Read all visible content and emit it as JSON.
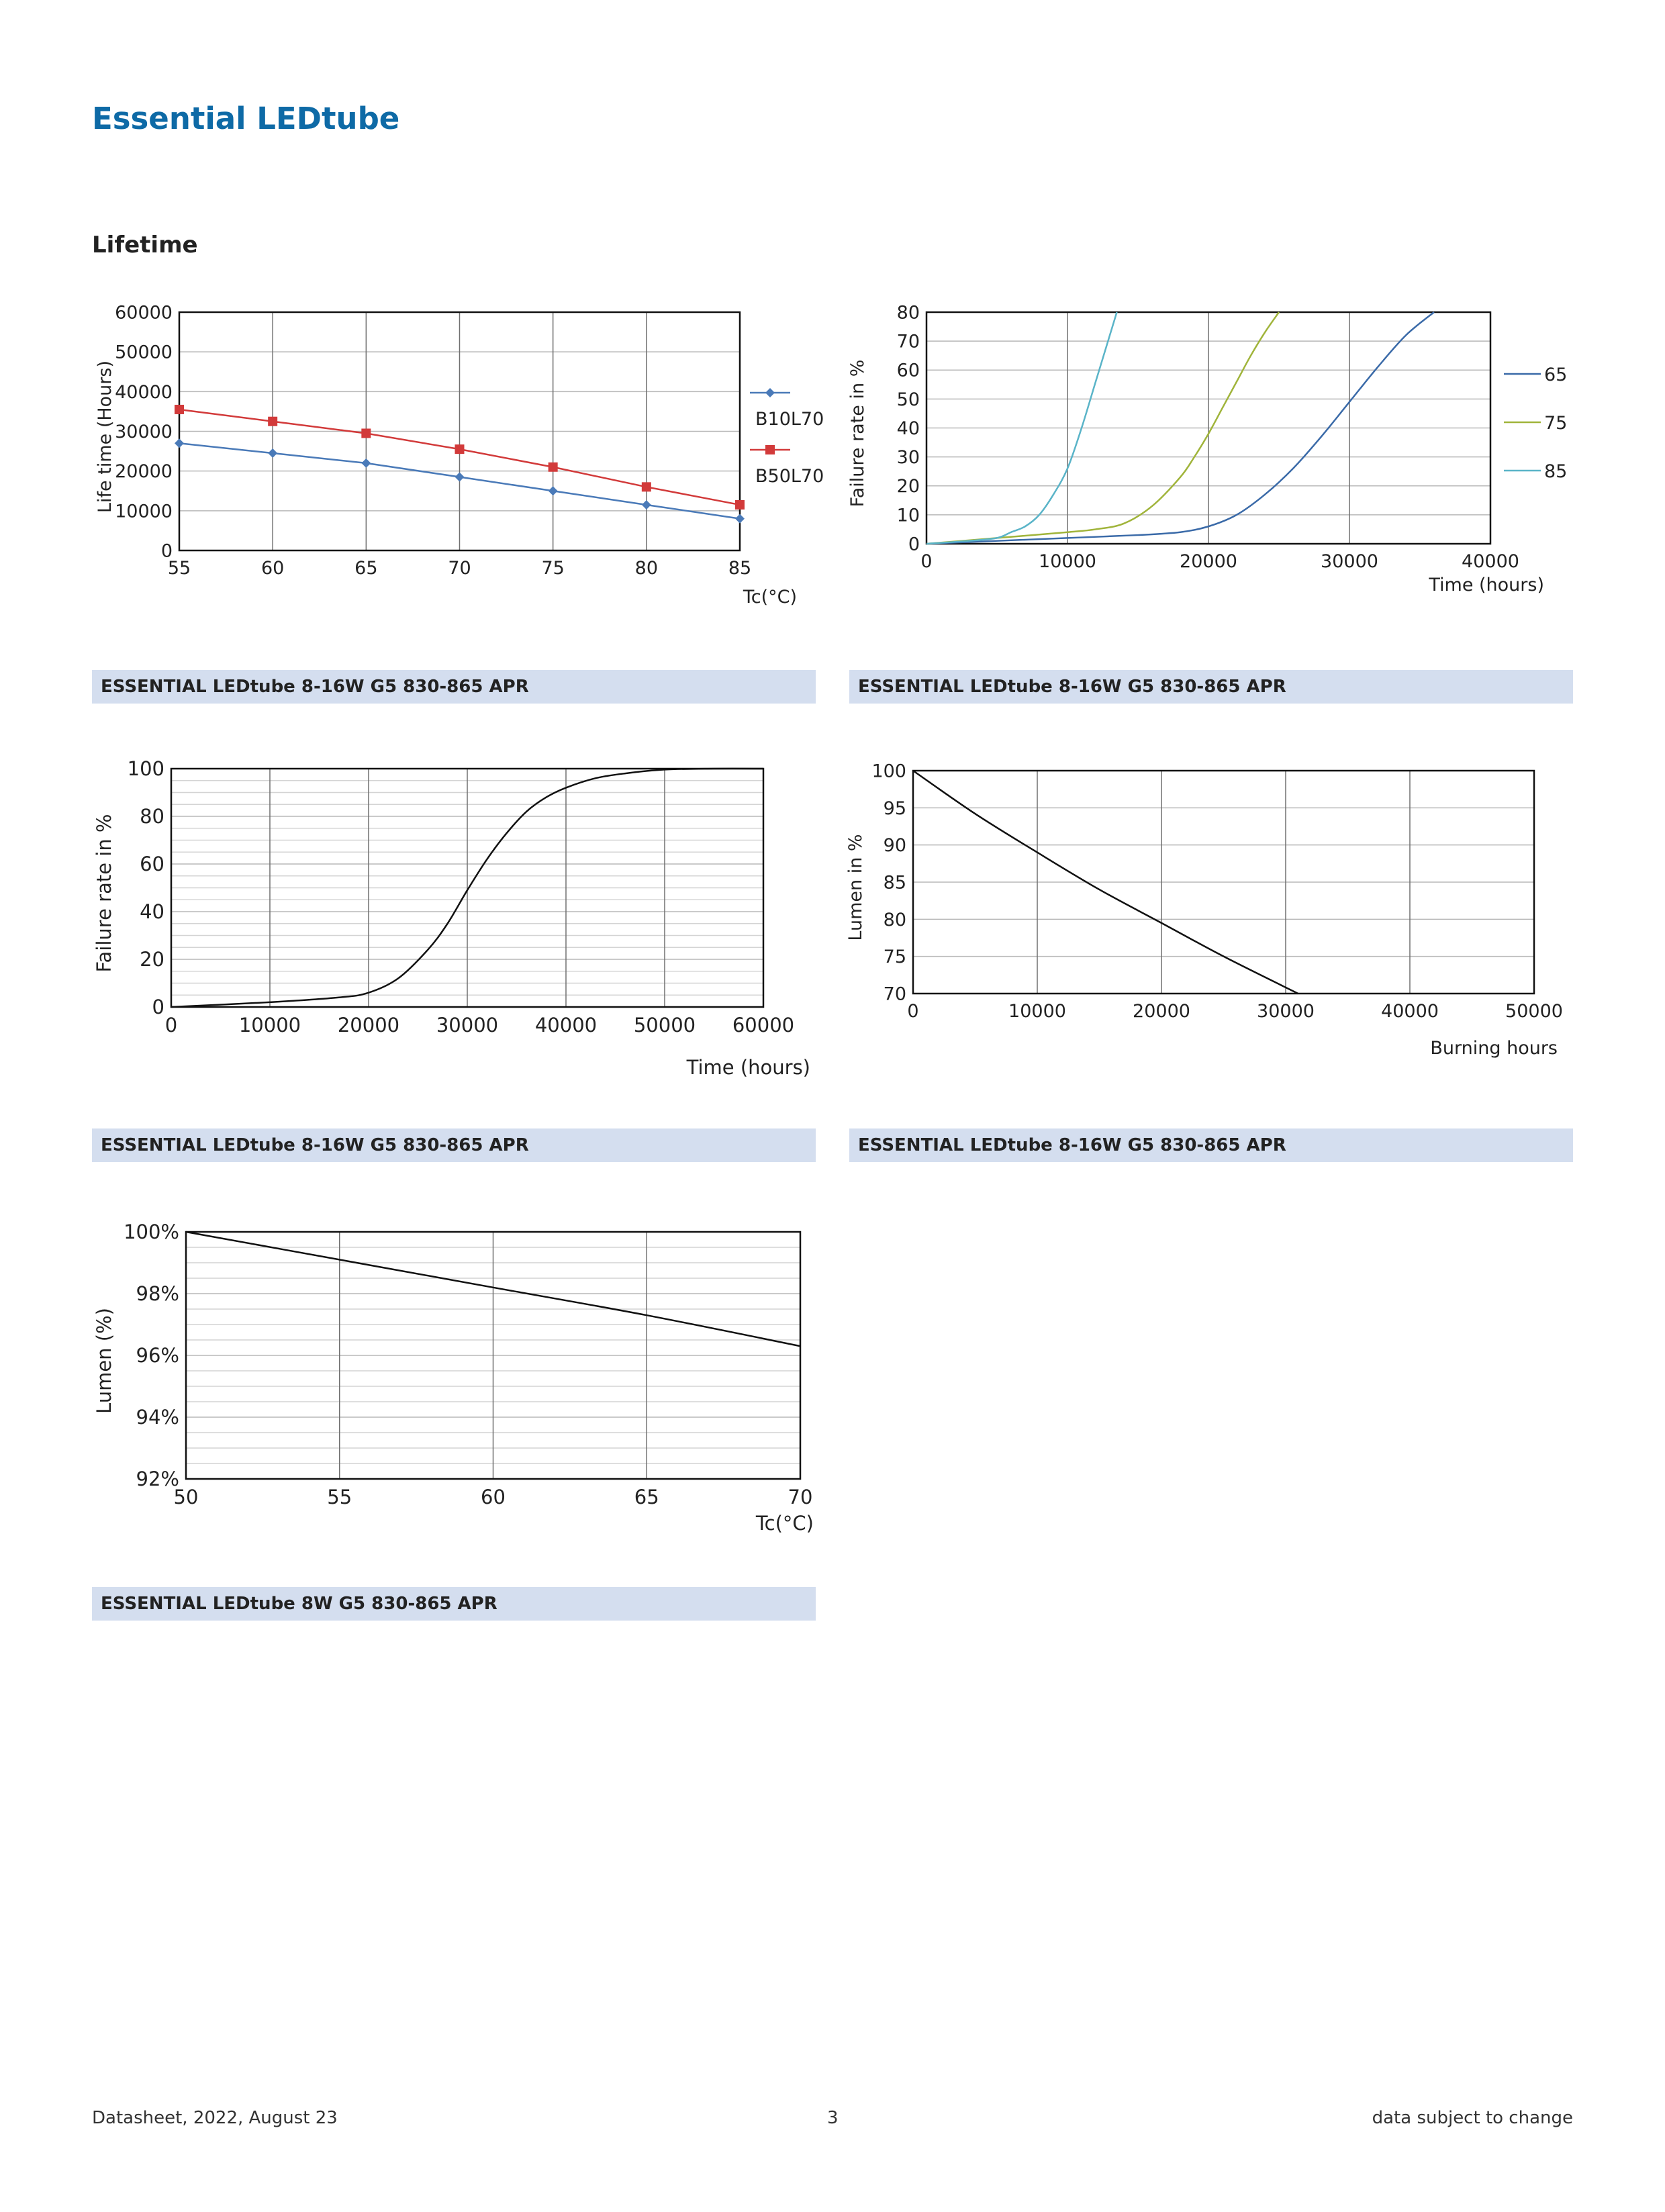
{
  "header": {
    "title": "Essential LEDtube",
    "section": "Lifetime"
  },
  "charts": [
    {
      "caption": "ESSENTIAL LEDtube 8-16W G5 830-865 APR",
      "chart_data": {
        "type": "line",
        "ylabel": "Life time (Hours)",
        "xlabel": "Tc(°C)",
        "xlim": [
          55,
          85
        ],
        "ylim": [
          0,
          60000
        ],
        "xticks": [
          55,
          60,
          65,
          70,
          75,
          80,
          85
        ],
        "yticks": [
          0,
          10000,
          20000,
          30000,
          40000,
          50000,
          60000
        ],
        "grid": true,
        "legend_position": "right",
        "series": [
          {
            "name": "B10L70",
            "color": "#4a7ab8",
            "marker": "diamond",
            "x": [
              55,
              60,
              65,
              70,
              75,
              80,
              85
            ],
            "values": [
              27000,
              24500,
              22000,
              18500,
              15000,
              11500,
              8000
            ]
          },
          {
            "name": "B50L70",
            "color": "#d23a3a",
            "marker": "square",
            "x": [
              55,
              60,
              65,
              70,
              75,
              80,
              85
            ],
            "values": [
              35500,
              32500,
              29500,
              25500,
              21000,
              16000,
              11500
            ]
          }
        ]
      }
    },
    {
      "caption": "ESSENTIAL LEDtube 8-16W G5 830-865 APR",
      "chart_data": {
        "type": "line",
        "ylabel": "Failure rate in %",
        "xlabel": "Time (hours)",
        "xlim": [
          0,
          40000
        ],
        "ylim": [
          0,
          80
        ],
        "xticks": [
          0,
          10000,
          20000,
          30000,
          40000
        ],
        "yticks": [
          0,
          10,
          20,
          30,
          40,
          50,
          60,
          70,
          80
        ],
        "grid": true,
        "legend_position": "right",
        "series": [
          {
            "name": "65",
            "color": "#3a6aa8",
            "x": [
              0,
              5000,
              10000,
              15000,
              18000,
              20000,
              22000,
              24000,
              26000,
              28000,
              30000,
              32000,
              34000,
              36000
            ],
            "values": [
              0,
              1,
              2,
              3,
              4,
              6,
              10,
              17,
              26,
              37,
              49,
              61,
              72,
              80
            ]
          },
          {
            "name": "75",
            "color": "#a0b43a",
            "x": [
              0,
              5000,
              10000,
              12000,
              14000,
              16000,
              18000,
              19000,
              20000,
              21000,
              22000,
              23000,
              24000,
              25000
            ],
            "values": [
              0,
              2,
              4,
              5,
              7,
              13,
              23,
              30,
              38,
              47,
              56,
              65,
              73,
              80
            ]
          },
          {
            "name": "85",
            "color": "#5ab4c8",
            "x": [
              0,
              3000,
              5000,
              6000,
              7000,
              8000,
              9000,
              10000,
              11000,
              12000,
              13000,
              13500
            ],
            "values": [
              0,
              1,
              2,
              4,
              6,
              10,
              17,
              26,
              40,
              56,
              72,
              80
            ]
          }
        ]
      }
    },
    {
      "caption": "ESSENTIAL LEDtube 8-16W G5 830-865 APR",
      "chart_data": {
        "type": "line",
        "ylabel": "Failure rate in %",
        "xlabel": "Time (hours)",
        "xlim": [
          0,
          60000
        ],
        "ylim": [
          0,
          100
        ],
        "xticks": [
          0,
          10000,
          20000,
          30000,
          40000,
          50000,
          60000
        ],
        "yticks": [
          0,
          20,
          40,
          60,
          80,
          100
        ],
        "grid": true,
        "series": [
          {
            "name": "",
            "color": "#111111",
            "x": [
              0,
              10000,
              17000,
              20000,
              23000,
              26000,
              28000,
              30000,
              32000,
              34000,
              36000,
              38000,
              40000,
              43000,
              46000,
              50000,
              55000,
              60000
            ],
            "values": [
              0,
              2,
              4,
              6,
              12,
              24,
              35,
              49,
              62,
              73,
              82,
              88,
              92,
              96,
              98,
              99.6,
              100,
              100
            ]
          }
        ]
      }
    },
    {
      "caption": "ESSENTIAL LEDtube 8-16W G5 830-865 APR",
      "chart_data": {
        "type": "line",
        "ylabel": "Lumen in %",
        "xlabel": "Burning hours",
        "xlim": [
          0,
          50000
        ],
        "ylim": [
          70,
          100
        ],
        "xticks": [
          0,
          10000,
          20000,
          30000,
          40000,
          50000
        ],
        "yticks": [
          70,
          75,
          80,
          85,
          90,
          95,
          100
        ],
        "grid": true,
        "series": [
          {
            "name": "",
            "color": "#111111",
            "x": [
              0,
              5000,
              10000,
              15000,
              20000,
              25000,
              31000
            ],
            "values": [
              100,
              94.2,
              89,
              84,
              79.5,
              75,
              70
            ]
          }
        ]
      }
    },
    {
      "caption": "ESSENTIAL LEDtube 8W G5 830-865 APR",
      "chart_data": {
        "type": "line",
        "ylabel": "Lumen (%)",
        "xlabel": "Tc(°C)",
        "xlim": [
          50,
          70
        ],
        "ylim": [
          92,
          100
        ],
        "xticks": [
          50,
          55,
          60,
          65,
          70
        ],
        "yticks": [
          92,
          94,
          96,
          98,
          100
        ],
        "ytick_labels": [
          "92%",
          "94%",
          "96%",
          "98%",
          "100%"
        ],
        "grid": true,
        "series": [
          {
            "name": "",
            "color": "#111111",
            "x": [
              50,
              55,
              60,
              65,
              70
            ],
            "values": [
              100,
              99.1,
              98.2,
              97.3,
              96.3
            ]
          }
        ]
      }
    }
  ],
  "footer": {
    "left": "Datasheet, 2022, August 23",
    "page": "3",
    "right": "data subject to change"
  }
}
